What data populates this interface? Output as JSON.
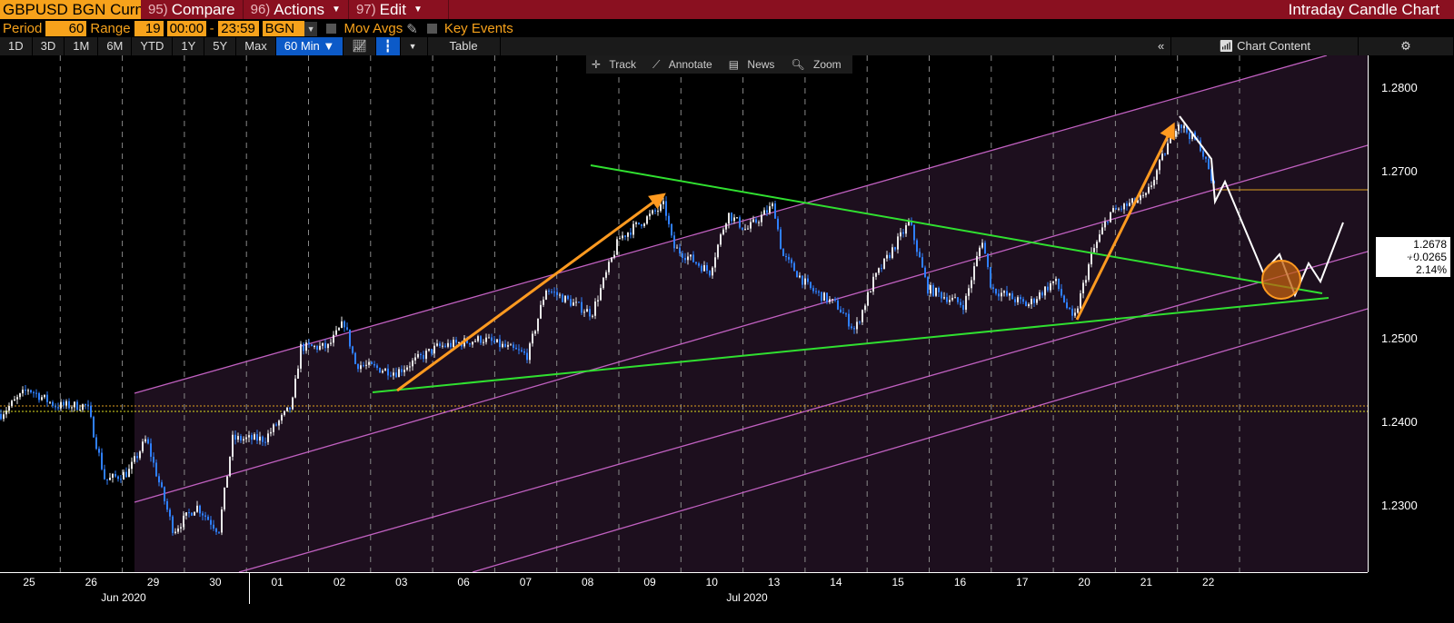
{
  "header": {
    "ticker": "GBPUSD BGN Curncy",
    "menus": [
      {
        "num": "95)",
        "label": "Compare"
      },
      {
        "num": "96)",
        "label": "Actions"
      },
      {
        "num": "97)",
        "label": "Edit"
      }
    ],
    "title": "Intraday Candle Chart"
  },
  "params": {
    "period_label": "Period",
    "period": "60",
    "range_label": "Range",
    "range": "19",
    "start_time": "00:00",
    "dash": "-",
    "end_time": "23:59",
    "source": "BGN",
    "mov_avgs": "Mov Avgs",
    "key_events": "Key Events"
  },
  "toolbar": {
    "ranges": [
      "1D",
      "3D",
      "1M",
      "6M",
      "YTD",
      "1Y",
      "5Y",
      "Max"
    ],
    "interval": "60 Min ▼",
    "table": "Table",
    "collapse": "«",
    "chart_content": "Chart Content"
  },
  "chart_tools": [
    "Track",
    "Annotate",
    "News",
    "Zoom"
  ],
  "chart_data": {
    "type": "candlestick",
    "instrument": "GBPUSD",
    "ylim": [
      1.2245,
      1.2862
    ],
    "y_ticks": [
      "1.2800",
      "1.2700",
      "1.2600",
      "1.2500",
      "1.2400",
      "1.2300"
    ],
    "x_ticks": [
      "25",
      "26",
      "29",
      "30",
      "01",
      "02",
      "03",
      "06",
      "07",
      "08",
      "09",
      "10",
      "13",
      "14",
      "15",
      "16",
      "17",
      "20",
      "21",
      "22"
    ],
    "month_labels": [
      "Jun 2020",
      "Jul 2020"
    ],
    "last": {
      "price": "1.2678",
      "change": "+0.0265",
      "pct": "2.14%"
    },
    "price_path": {
      "t": [
        0,
        0.44,
        0.88,
        1.39,
        1.68,
        2.05,
        2.34,
        2.78,
        3.15,
        3.51,
        3.73,
        4.25,
        4.69,
        4.83,
        5.27,
        5.53,
        5.71,
        6.37,
        7.03,
        7.76,
        8.49,
        8.78,
        9.52,
        9.96,
        10.69,
        10.83,
        11.42,
        11.71,
        12.01,
        12.45,
        12.59,
        13.03,
        13.47,
        13.76,
        14.06,
        14.64,
        14.93,
        15.52,
        15.81,
        15.96,
        16.54,
        16.98,
        17.28,
        17.57,
        17.86,
        18.45,
        18.96,
        19.33,
        19.55
      ],
      "price": [
        1.241,
        1.244,
        1.242,
        1.242,
        1.233,
        1.234,
        1.238,
        1.227,
        1.23,
        1.227,
        1.238,
        1.238,
        1.242,
        1.249,
        1.249,
        1.252,
        1.247,
        1.246,
        1.249,
        1.25,
        1.248,
        1.256,
        1.253,
        1.262,
        1.266,
        1.261,
        1.258,
        1.265,
        1.263,
        1.266,
        1.26,
        1.256,
        1.254,
        1.251,
        1.257,
        1.264,
        1.256,
        1.254,
        1.262,
        1.256,
        1.254,
        1.257,
        1.252,
        1.26,
        1.265,
        1.267,
        1.276,
        1.273,
        1.268
      ]
    }
  }
}
